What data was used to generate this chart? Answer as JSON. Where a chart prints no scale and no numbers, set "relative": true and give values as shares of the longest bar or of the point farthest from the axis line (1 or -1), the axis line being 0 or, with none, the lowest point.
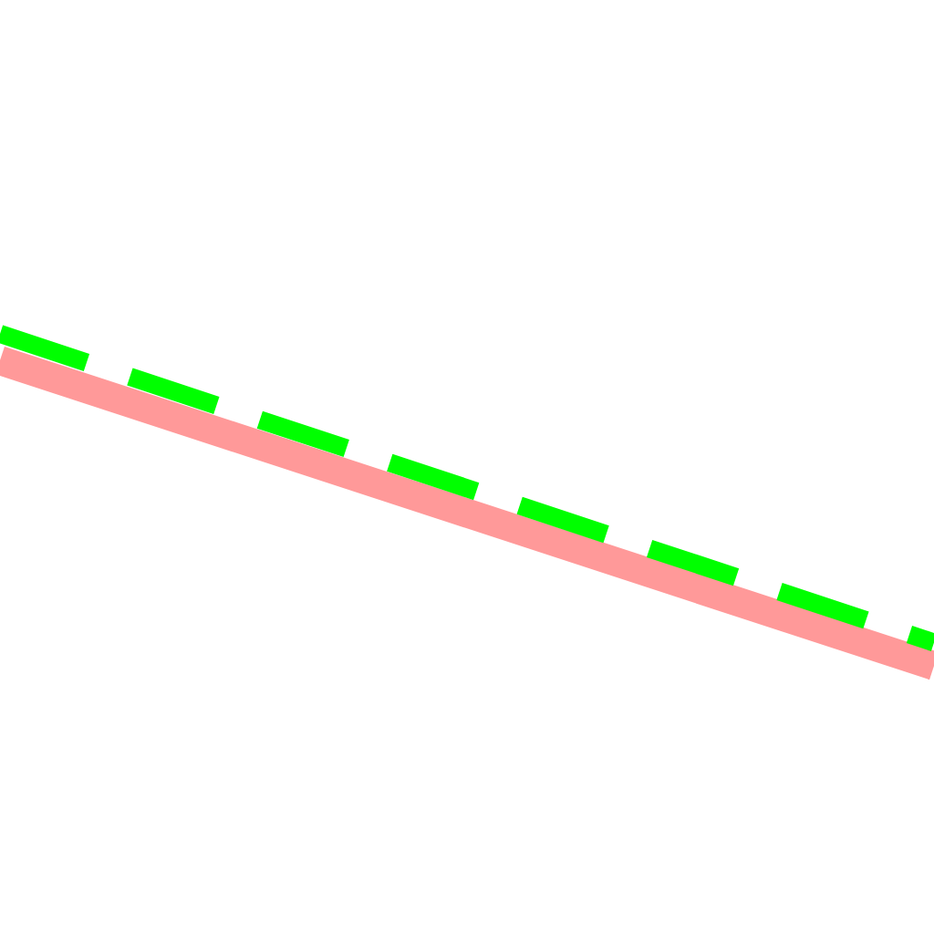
{
  "chart_data": {
    "type": "line",
    "relative": true,
    "categories": [
      null,
      null
    ],
    "marker": "none",
    "series": [
      {
        "color": "#ff9999",
        "values": [
          0.92,
          0
        ],
        "line_style": "solid"
      },
      {
        "color": "#00ff00",
        "values": [
          1,
          0.07
        ],
        "line_style": "dashed"
      }
    ]
  }
}
